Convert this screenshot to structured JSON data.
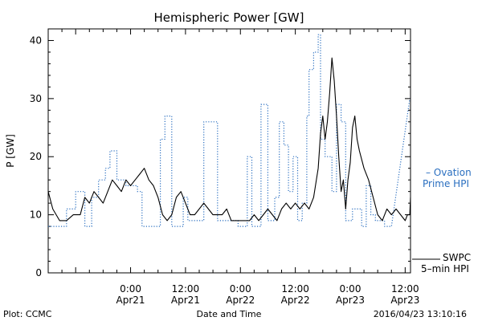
{
  "chart_data": {
    "type": "line",
    "title": "Hemispheric Power [GW]",
    "xlabel": "Date and Time",
    "ylabel": "P [GW]",
    "ylim": [
      0,
      42
    ],
    "yticks": [
      0,
      10,
      20,
      30,
      40
    ],
    "x_start": "2016-04-20 06:00",
    "x_end": "2016-04-23 13:10",
    "xticks": [
      {
        "t": "2016-04-21 00:00",
        "time": "0:00",
        "date": "Apr21"
      },
      {
        "t": "2016-04-21 12:00",
        "time": "12:00",
        "date": "Apr21"
      },
      {
        "t": "2016-04-22 00:00",
        "time": "0:00",
        "date": "Apr22"
      },
      {
        "t": "2016-04-22 12:00",
        "time": "12:00",
        "date": "Apr22"
      },
      {
        "t": "2016-04-23 00:00",
        "time": "0:00",
        "date": "Apr23"
      },
      {
        "t": "2016-04-23 12:00",
        "time": "12:00",
        "date": "Apr23"
      }
    ],
    "grid": false,
    "legend_position": "right",
    "series": [
      {
        "name": "SWPC 5-min HPI",
        "color": "#000000",
        "style": "solid",
        "points": [
          [
            "2016-04-20 06:00",
            14
          ],
          [
            "2016-04-20 07:00",
            11
          ],
          [
            "2016-04-20 08:30",
            9
          ],
          [
            "2016-04-20 10:00",
            9
          ],
          [
            "2016-04-20 11:30",
            10
          ],
          [
            "2016-04-20 13:00",
            10
          ],
          [
            "2016-04-20 14:00",
            13
          ],
          [
            "2016-04-20 15:00",
            12
          ],
          [
            "2016-04-20 16:00",
            14
          ],
          [
            "2016-04-20 17:00",
            13
          ],
          [
            "2016-04-20 18:00",
            12
          ],
          [
            "2016-04-20 19:00",
            14
          ],
          [
            "2016-04-20 20:00",
            16
          ],
          [
            "2016-04-20 21:00",
            15
          ],
          [
            "2016-04-20 22:00",
            14
          ],
          [
            "2016-04-20 23:00",
            16
          ],
          [
            "2016-04-21 00:00",
            15
          ],
          [
            "2016-04-21 01:00",
            16
          ],
          [
            "2016-04-21 02:00",
            17
          ],
          [
            "2016-04-21 03:00",
            18
          ],
          [
            "2016-04-21 04:00",
            16
          ],
          [
            "2016-04-21 05:00",
            15
          ],
          [
            "2016-04-21 06:00",
            13
          ],
          [
            "2016-04-21 07:00",
            10
          ],
          [
            "2016-04-21 08:00",
            9
          ],
          [
            "2016-04-21 09:00",
            10
          ],
          [
            "2016-04-21 10:00",
            13
          ],
          [
            "2016-04-21 11:00",
            14
          ],
          [
            "2016-04-21 12:00",
            12
          ],
          [
            "2016-04-21 13:00",
            10
          ],
          [
            "2016-04-21 14:00",
            10
          ],
          [
            "2016-04-21 15:00",
            11
          ],
          [
            "2016-04-21 16:00",
            12
          ],
          [
            "2016-04-21 17:00",
            11
          ],
          [
            "2016-04-21 18:00",
            10
          ],
          [
            "2016-04-21 19:00",
            10
          ],
          [
            "2016-04-21 20:00",
            10
          ],
          [
            "2016-04-21 21:00",
            11
          ],
          [
            "2016-04-21 22:00",
            9
          ],
          [
            "2016-04-22 00:00",
            9
          ],
          [
            "2016-04-22 02:00",
            9
          ],
          [
            "2016-04-22 03:00",
            10
          ],
          [
            "2016-04-22 04:00",
            9
          ],
          [
            "2016-04-22 05:00",
            10
          ],
          [
            "2016-04-22 06:00",
            11
          ],
          [
            "2016-04-22 07:00",
            10
          ],
          [
            "2016-04-22 08:00",
            9
          ],
          [
            "2016-04-22 09:00",
            11
          ],
          [
            "2016-04-22 10:00",
            12
          ],
          [
            "2016-04-22 11:00",
            11
          ],
          [
            "2016-04-22 12:00",
            12
          ],
          [
            "2016-04-22 13:00",
            11
          ],
          [
            "2016-04-22 14:00",
            12
          ],
          [
            "2016-04-22 15:00",
            11
          ],
          [
            "2016-04-22 16:00",
            13
          ],
          [
            "2016-04-22 17:00",
            18
          ],
          [
            "2016-04-22 17:30",
            24
          ],
          [
            "2016-04-22 18:00",
            27
          ],
          [
            "2016-04-22 18:30",
            23
          ],
          [
            "2016-04-22 19:00",
            26
          ],
          [
            "2016-04-22 19:30",
            31
          ],
          [
            "2016-04-22 20:00",
            37
          ],
          [
            "2016-04-22 20:30",
            33
          ],
          [
            "2016-04-22 21:00",
            27
          ],
          [
            "2016-04-22 21:30",
            20
          ],
          [
            "2016-04-22 22:00",
            14
          ],
          [
            "2016-04-22 22:30",
            16
          ],
          [
            "2016-04-22 23:00",
            11
          ],
          [
            "2016-04-22 23:30",
            16
          ],
          [
            "2016-04-23 00:00",
            19
          ],
          [
            "2016-04-23 00:30",
            25
          ],
          [
            "2016-04-23 01:00",
            27
          ],
          [
            "2016-04-23 01:30",
            23
          ],
          [
            "2016-04-23 02:00",
            21
          ],
          [
            "2016-04-23 03:00",
            18
          ],
          [
            "2016-04-23 04:00",
            16
          ],
          [
            "2016-04-23 05:00",
            13
          ],
          [
            "2016-04-23 06:00",
            10
          ],
          [
            "2016-04-23 07:00",
            9
          ],
          [
            "2016-04-23 08:00",
            11
          ],
          [
            "2016-04-23 09:00",
            10
          ],
          [
            "2016-04-23 10:00",
            11
          ],
          [
            "2016-04-23 11:00",
            10
          ],
          [
            "2016-04-23 12:00",
            9
          ],
          [
            "2016-04-23 12:30",
            10
          ],
          [
            "2016-04-23 13:00",
            10
          ],
          [
            "2016-04-23 13:10",
            13
          ]
        ]
      },
      {
        "name": "Ovation Prime HPI",
        "color": "#2a6fc0",
        "style": "dotted",
        "points": [
          [
            "2016-04-20 06:00",
            8
          ],
          [
            "2016-04-20 10:00",
            8
          ],
          [
            "2016-04-20 10:00",
            11
          ],
          [
            "2016-04-20 12:00",
            11
          ],
          [
            "2016-04-20 12:00",
            14
          ],
          [
            "2016-04-20 14:00",
            14
          ],
          [
            "2016-04-20 14:00",
            8
          ],
          [
            "2016-04-20 15:30",
            8
          ],
          [
            "2016-04-20 15:30",
            13
          ],
          [
            "2016-04-20 17:00",
            13
          ],
          [
            "2016-04-20 17:00",
            16
          ],
          [
            "2016-04-20 18:30",
            16
          ],
          [
            "2016-04-20 18:30",
            18
          ],
          [
            "2016-04-20 19:30",
            18
          ],
          [
            "2016-04-20 19:30",
            21
          ],
          [
            "2016-04-20 21:00",
            21
          ],
          [
            "2016-04-20 21:00",
            16
          ],
          [
            "2016-04-20 23:00",
            16
          ],
          [
            "2016-04-20 23:00",
            15
          ],
          [
            "2016-04-21 01:30",
            15
          ],
          [
            "2016-04-21 01:30",
            14
          ],
          [
            "2016-04-21 02:30",
            14
          ],
          [
            "2016-04-21 02:30",
            8
          ],
          [
            "2016-04-21 06:30",
            8
          ],
          [
            "2016-04-21 06:30",
            23
          ],
          [
            "2016-04-21 07:30",
            23
          ],
          [
            "2016-04-21 07:30",
            27
          ],
          [
            "2016-04-21 09:00",
            27
          ],
          [
            "2016-04-21 09:00",
            8
          ],
          [
            "2016-04-21 11:30",
            8
          ],
          [
            "2016-04-21 11:30",
            13
          ],
          [
            "2016-04-21 12:30",
            13
          ],
          [
            "2016-04-21 12:30",
            9
          ],
          [
            "2016-04-21 16:00",
            9
          ],
          [
            "2016-04-21 16:00",
            26
          ],
          [
            "2016-04-21 19:00",
            26
          ],
          [
            "2016-04-21 19:00",
            9
          ],
          [
            "2016-04-21 23:30",
            9
          ],
          [
            "2016-04-21 23:30",
            8
          ],
          [
            "2016-04-22 01:30",
            8
          ],
          [
            "2016-04-22 01:30",
            20
          ],
          [
            "2016-04-22 02:30",
            20
          ],
          [
            "2016-04-22 02:30",
            8
          ],
          [
            "2016-04-22 04:30",
            8
          ],
          [
            "2016-04-22 04:30",
            29
          ],
          [
            "2016-04-22 06:00",
            29
          ],
          [
            "2016-04-22 06:00",
            9
          ],
          [
            "2016-04-22 07:30",
            9
          ],
          [
            "2016-04-22 07:30",
            13
          ],
          [
            "2016-04-22 08:30",
            13
          ],
          [
            "2016-04-22 08:30",
            26
          ],
          [
            "2016-04-22 09:30",
            26
          ],
          [
            "2016-04-22 09:30",
            22
          ],
          [
            "2016-04-22 10:30",
            22
          ],
          [
            "2016-04-22 10:30",
            14
          ],
          [
            "2016-04-22 11:30",
            14
          ],
          [
            "2016-04-22 11:30",
            20
          ],
          [
            "2016-04-22 12:30",
            20
          ],
          [
            "2016-04-22 12:30",
            9
          ],
          [
            "2016-04-22 13:30",
            9
          ],
          [
            "2016-04-22 13:30",
            12
          ],
          [
            "2016-04-22 14:30",
            12
          ],
          [
            "2016-04-22 14:30",
            27
          ],
          [
            "2016-04-22 15:00",
            27
          ],
          [
            "2016-04-22 15:00",
            35
          ],
          [
            "2016-04-22 16:00",
            35
          ],
          [
            "2016-04-22 16:00",
            38
          ],
          [
            "2016-04-22 17:00",
            38
          ],
          [
            "2016-04-22 17:00",
            41
          ],
          [
            "2016-04-22 17:30",
            41
          ],
          [
            "2016-04-22 17:30",
            23
          ],
          [
            "2016-04-22 18:30",
            23
          ],
          [
            "2016-04-22 18:30",
            20
          ],
          [
            "2016-04-22 20:00",
            20
          ],
          [
            "2016-04-22 20:00",
            14
          ],
          [
            "2016-04-22 21:00",
            14
          ],
          [
            "2016-04-22 21:00",
            29
          ],
          [
            "2016-04-22 22:00",
            29
          ],
          [
            "2016-04-22 22:00",
            26
          ],
          [
            "2016-04-22 23:00",
            26
          ],
          [
            "2016-04-22 23:00",
            9
          ],
          [
            "2016-04-23 00:30",
            9
          ],
          [
            "2016-04-23 00:30",
            11
          ],
          [
            "2016-04-23 02:30",
            11
          ],
          [
            "2016-04-23 02:30",
            8
          ],
          [
            "2016-04-23 03:30",
            8
          ],
          [
            "2016-04-23 03:30",
            15
          ],
          [
            "2016-04-23 04:30",
            15
          ],
          [
            "2016-04-23 04:30",
            10
          ],
          [
            "2016-04-23 05:30",
            10
          ],
          [
            "2016-04-23 05:30",
            9
          ],
          [
            "2016-04-23 07:30",
            9
          ],
          [
            "2016-04-23 07:30",
            8
          ],
          [
            "2016-04-23 09:00",
            8
          ],
          [
            "2016-04-23 13:00",
            30
          ]
        ]
      }
    ]
  },
  "legend": {
    "ovation_line1": "– Ovation",
    "ovation_line2": "Prime HPI",
    "swpc_line1": "SWPC",
    "swpc_line2": "5–min HPI"
  },
  "footer": {
    "left": "Plot: CCMC",
    "center": "Date and Time",
    "right": "2016/04/23 13:10:16"
  },
  "colors": {
    "swpc": "#000000",
    "ovation": "#2a6fc0",
    "axes": "#000000"
  }
}
